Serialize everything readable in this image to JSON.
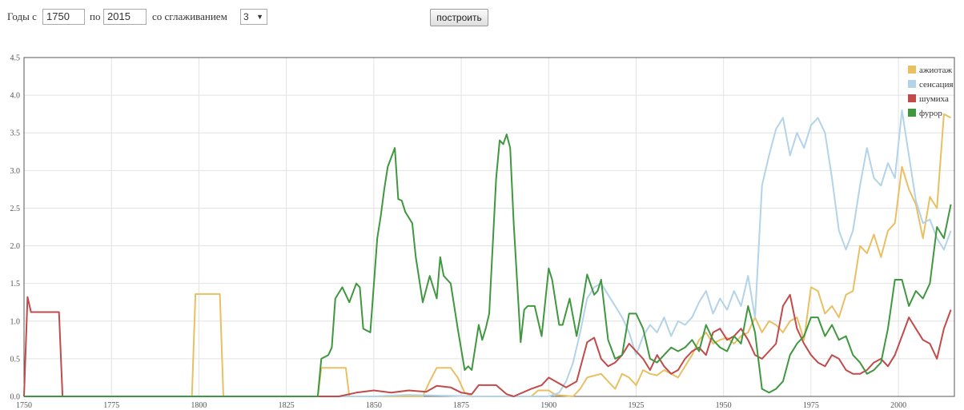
{
  "controls": {
    "years_from_label": "Годы с",
    "year_from": "1750",
    "to_label": "по",
    "year_to": "2015",
    "smoothing_label": "со сглаживанием",
    "smoothing_value": "3",
    "build_button": "построить"
  },
  "chart_data": {
    "type": "line",
    "xlim": [
      1750,
      2016
    ],
    "ylim": [
      0,
      4.5
    ],
    "x_ticks": [
      1750,
      1775,
      1800,
      1825,
      1850,
      1875,
      1900,
      1925,
      1950,
      1975,
      2000
    ],
    "y_ticks": [
      "0.0",
      "0.5",
      "1.0",
      "1.5",
      "2.0",
      "2.5",
      "3.0",
      "3.5",
      "4.0",
      "4.5"
    ],
    "grid": true,
    "legend_position": "top-right",
    "series": [
      {
        "name": "ажиотаж",
        "color": "#e8c063",
        "x": [
          1750,
          1798,
          1799,
          1806,
          1807,
          1834,
          1835,
          1842,
          1843,
          1864,
          1866,
          1868,
          1870,
          1872,
          1874,
          1876,
          1878,
          1880,
          1885,
          1890,
          1895,
          1897,
          1900,
          1902,
          1907,
          1909,
          1911,
          1915,
          1917,
          1919,
          1921,
          1923,
          1925,
          1927,
          1929,
          1931,
          1933,
          1935,
          1937,
          1939,
          1941,
          1943,
          1945,
          1947,
          1949,
          1951,
          1953,
          1955,
          1957,
          1959,
          1961,
          1963,
          1965,
          1967,
          1969,
          1971,
          1973,
          1975,
          1977,
          1979,
          1981,
          1983,
          1985,
          1987,
          1989,
          1991,
          1993,
          1995,
          1997,
          1999,
          2001,
          2003,
          2005,
          2007,
          2009,
          2011,
          2013,
          2015
        ],
        "y": [
          0,
          0,
          1.36,
          1.36,
          0,
          0,
          0.38,
          0.38,
          0,
          0,
          0.2,
          0.38,
          0.38,
          0.38,
          0.25,
          0.05,
          0,
          0,
          0,
          0,
          0,
          0.08,
          0.08,
          0.02,
          0,
          0.1,
          0.25,
          0.3,
          0.2,
          0.1,
          0.3,
          0.25,
          0.15,
          0.35,
          0.3,
          0.28,
          0.35,
          0.3,
          0.25,
          0.4,
          0.55,
          0.75,
          0.85,
          0.7,
          0.75,
          0.78,
          0.7,
          0.8,
          0.85,
          1.05,
          0.85,
          1.0,
          0.95,
          0.85,
          1.0,
          1.05,
          0.75,
          1.45,
          1.4,
          1.1,
          1.2,
          1.05,
          1.35,
          1.4,
          2.0,
          1.9,
          2.15,
          1.85,
          2.2,
          2.3,
          3.05,
          2.75,
          2.55,
          2.1,
          2.65,
          2.5,
          3.75,
          3.7
        ]
      },
      {
        "name": "сенсация",
        "color": "#b3d3e8",
        "x": [
          1750,
          1850,
          1860,
          1880,
          1900,
          1903,
          1905,
          1907,
          1909,
          1911,
          1913,
          1915,
          1917,
          1919,
          1921,
          1923,
          1925,
          1927,
          1929,
          1931,
          1933,
          1935,
          1937,
          1939,
          1941,
          1943,
          1945,
          1947,
          1949,
          1951,
          1953,
          1955,
          1957,
          1959,
          1961,
          1963,
          1965,
          1967,
          1969,
          1971,
          1973,
          1975,
          1977,
          1979,
          1981,
          1983,
          1985,
          1987,
          1989,
          1991,
          1993,
          1995,
          1997,
          1999,
          2001,
          2003,
          2005,
          2007,
          2009,
          2011,
          2013,
          2015
        ],
        "y": [
          0,
          0,
          0.02,
          0,
          0,
          0.05,
          0.2,
          0.45,
          0.85,
          1.3,
          1.45,
          1.5,
          1.35,
          1.2,
          1.05,
          0.85,
          0.55,
          0.8,
          0.95,
          0.85,
          1.05,
          0.8,
          1.0,
          0.95,
          1.05,
          1.25,
          1.4,
          1.1,
          1.3,
          1.15,
          1.4,
          1.2,
          1.6,
          1.05,
          2.8,
          3.2,
          3.55,
          3.7,
          3.2,
          3.5,
          3.3,
          3.6,
          3.7,
          3.5,
          2.9,
          2.2,
          1.95,
          2.2,
          2.8,
          3.3,
          2.9,
          2.8,
          3.1,
          2.9,
          3.8,
          3.2,
          2.6,
          2.3,
          2.35,
          2.1,
          1.95,
          2.2
        ]
      },
      {
        "name": "шумиха",
        "color": "#c14a4a",
        "x": [
          1750,
          1751,
          1752,
          1760,
          1761,
          1840,
          1845,
          1850,
          1855,
          1860,
          1865,
          1868,
          1872,
          1875,
          1878,
          1880,
          1885,
          1888,
          1890,
          1895,
          1898,
          1900,
          1905,
          1908,
          1911,
          1913,
          1915,
          1917,
          1919,
          1921,
          1923,
          1925,
          1927,
          1929,
          1931,
          1933,
          1935,
          1937,
          1939,
          1941,
          1943,
          1945,
          1947,
          1949,
          1951,
          1953,
          1955,
          1957,
          1959,
          1961,
          1963,
          1965,
          1967,
          1969,
          1971,
          1973,
          1975,
          1977,
          1979,
          1981,
          1983,
          1985,
          1987,
          1989,
          1991,
          1993,
          1995,
          1997,
          1999,
          2001,
          2003,
          2005,
          2007,
          2009,
          2011,
          2013,
          2015
        ],
        "y": [
          0,
          1.32,
          1.12,
          1.12,
          0,
          0,
          0.05,
          0.08,
          0.05,
          0.08,
          0.06,
          0.14,
          0.12,
          0.05,
          0.03,
          0.15,
          0.15,
          0.03,
          0,
          0.1,
          0.15,
          0.25,
          0.12,
          0.2,
          0.72,
          0.78,
          0.5,
          0.4,
          0.45,
          0.55,
          0.7,
          0.6,
          0.5,
          0.35,
          0.55,
          0.4,
          0.3,
          0.35,
          0.5,
          0.6,
          0.65,
          0.55,
          0.85,
          0.9,
          0.75,
          0.8,
          0.9,
          0.75,
          0.55,
          0.5,
          0.6,
          0.7,
          1.2,
          1.35,
          0.9,
          0.7,
          0.55,
          0.45,
          0.4,
          0.55,
          0.5,
          0.35,
          0.3,
          0.3,
          0.35,
          0.45,
          0.5,
          0.4,
          0.55,
          0.8,
          1.05,
          0.9,
          0.75,
          0.7,
          0.5,
          0.9,
          1.15
        ]
      },
      {
        "name": "фурор",
        "color": "#3f973f",
        "x": [
          1750,
          1834,
          1835,
          1837,
          1838,
          1839,
          1841,
          1843,
          1845,
          1846,
          1847,
          1849,
          1851,
          1852,
          1853,
          1854,
          1856,
          1857,
          1858,
          1859,
          1861,
          1862,
          1864,
          1866,
          1868,
          1869,
          1870,
          1871,
          1872,
          1874,
          1876,
          1877,
          1878,
          1880,
          1881,
          1882,
          1883,
          1885,
          1886,
          1887,
          1888,
          1889,
          1890,
          1892,
          1893,
          1894,
          1896,
          1898,
          1900,
          1901,
          1903,
          1904,
          1906,
          1908,
          1909,
          1911,
          1913,
          1914,
          1915,
          1917,
          1919,
          1921,
          1923,
          1925,
          1927,
          1929,
          1931,
          1933,
          1935,
          1937,
          1939,
          1941,
          1943,
          1945,
          1947,
          1949,
          1951,
          1953,
          1955,
          1957,
          1959,
          1961,
          1963,
          1965,
          1967,
          1969,
          1971,
          1973,
          1975,
          1977,
          1979,
          1981,
          1983,
          1985,
          1987,
          1989,
          1991,
          1993,
          1995,
          1997,
          1999,
          2001,
          2003,
          2005,
          2007,
          2009,
          2011,
          2013,
          2015
        ],
        "y": [
          0,
          0,
          0.5,
          0.55,
          0.65,
          1.3,
          1.45,
          1.25,
          1.5,
          1.45,
          0.9,
          0.85,
          2.1,
          2.4,
          2.75,
          3.05,
          3.3,
          2.62,
          2.6,
          2.45,
          2.3,
          1.85,
          1.25,
          1.6,
          1.3,
          1.85,
          1.6,
          1.55,
          1.5,
          0.9,
          0.35,
          0.4,
          0.35,
          0.95,
          0.75,
          0.9,
          1.1,
          2.9,
          3.4,
          3.35,
          3.48,
          3.3,
          2.3,
          0.72,
          1.15,
          1.2,
          1.2,
          0.8,
          1.7,
          1.55,
          0.95,
          0.95,
          1.3,
          0.8,
          1.05,
          1.62,
          1.35,
          1.4,
          1.55,
          0.75,
          0.5,
          0.55,
          1.1,
          1.1,
          0.9,
          0.5,
          0.45,
          0.55,
          0.65,
          0.6,
          0.65,
          0.75,
          0.6,
          0.95,
          0.75,
          0.65,
          0.6,
          0.8,
          0.7,
          1.2,
          0.85,
          0.1,
          0.05,
          0.1,
          0.2,
          0.55,
          0.7,
          0.8,
          1.05,
          1.05,
          0.8,
          0.95,
          0.75,
          0.8,
          0.55,
          0.45,
          0.3,
          0.35,
          0.45,
          0.9,
          1.55,
          1.55,
          1.2,
          1.4,
          1.3,
          1.5,
          2.25,
          2.1,
          2.55
        ]
      }
    ]
  }
}
